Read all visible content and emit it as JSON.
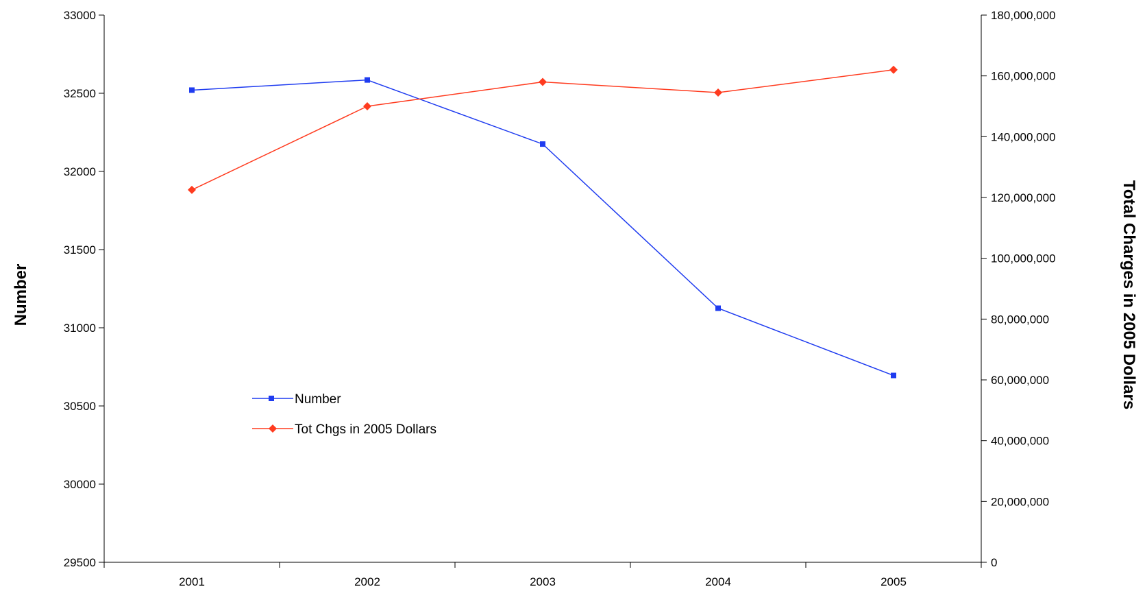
{
  "chart_data": {
    "type": "line",
    "title": "",
    "x": [
      "2001",
      "2002",
      "2003",
      "2004",
      "2005"
    ],
    "left_axis": {
      "label": "Number",
      "ylim": [
        29500,
        33000
      ],
      "ticks": [
        29500,
        30000,
        30500,
        31000,
        31500,
        32000,
        32500,
        33000
      ],
      "tick_labels": [
        "29500",
        "30000",
        "30500",
        "31000",
        "31500",
        "32000",
        "32500",
        "33000"
      ]
    },
    "right_axis": {
      "label": "Total Charges in 2005 Dollars",
      "ylim": [
        0,
        180000000
      ],
      "ticks": [
        0,
        20000000,
        40000000,
        60000000,
        80000000,
        100000000,
        120000000,
        140000000,
        160000000,
        180000000
      ],
      "tick_labels": [
        "0",
        "20,000,000",
        "40,000,000",
        "60,000,000",
        "80,000,000",
        "100,000,000",
        "120,000,000",
        "140,000,000",
        "160,000,000",
        "180,000,000"
      ]
    },
    "series": [
      {
        "name": "Number",
        "axis": "left",
        "color": "#1f3cf0",
        "marker": "square",
        "values": [
          32520,
          32585,
          32175,
          31125,
          30695
        ]
      },
      {
        "name": "Tot Chgs in 2005 Dollars",
        "axis": "right",
        "color": "#ff3b1f",
        "marker": "diamond",
        "values": [
          122500000,
          150000000,
          158000000,
          154500000,
          162000000
        ]
      }
    ],
    "grid": false,
    "legend": "center-left"
  }
}
